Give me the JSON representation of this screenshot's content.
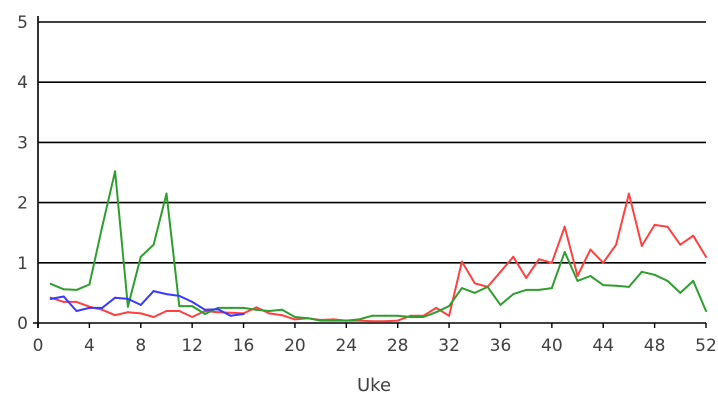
{
  "chart_data": {
    "type": "line",
    "title": "",
    "xlabel": "Uke",
    "ylabel": "",
    "xlim": [
      0,
      52
    ],
    "ylim": [
      0,
      5
    ],
    "x_ticks": [
      0,
      4,
      8,
      12,
      16,
      20,
      24,
      28,
      32,
      36,
      40,
      44,
      48,
      52
    ],
    "y_ticks": [
      0,
      1,
      2,
      3,
      4,
      5
    ],
    "grid": "horizontal",
    "legend": "none",
    "series": [
      {
        "color": "#ff4040",
        "x": [
          1,
          2,
          3,
          4,
          5,
          6,
          7,
          8,
          9,
          10,
          11,
          12,
          13,
          14,
          15,
          16,
          17,
          18,
          19,
          20,
          21,
          22,
          23,
          24,
          25,
          26,
          27,
          28,
          29,
          30,
          31,
          32,
          33,
          34,
          35,
          36,
          37,
          38,
          39,
          40,
          41,
          42,
          43,
          44,
          45,
          46,
          47,
          48,
          49,
          50,
          51,
          52
        ],
        "y": [
          0.42,
          0.35,
          0.35,
          0.27,
          0.22,
          0.13,
          0.18,
          0.16,
          0.1,
          0.2,
          0.2,
          0.1,
          0.2,
          0.18,
          0.17,
          0.16,
          0.26,
          0.16,
          0.13,
          0.06,
          0.08,
          0.05,
          0.06,
          0.04,
          0.04,
          0.03,
          0.03,
          0.04,
          0.12,
          0.12,
          0.25,
          0.12,
          1.02,
          0.66,
          0.6,
          0.85,
          1.1,
          0.75,
          1.06,
          1.0,
          1.6,
          0.78,
          1.22,
          1.0,
          1.3,
          2.15,
          1.28,
          1.63,
          1.6,
          1.3,
          1.45,
          1.1
        ]
      },
      {
        "color": "#2e9e2e",
        "x": [
          1,
          2,
          3,
          4,
          5,
          6,
          7,
          8,
          9,
          10,
          11,
          12,
          13,
          14,
          15,
          16,
          17,
          18,
          19,
          20,
          21,
          22,
          23,
          24,
          25,
          26,
          27,
          28,
          29,
          30,
          31,
          32,
          33,
          34,
          35,
          36,
          37,
          38,
          39,
          40,
          41,
          42,
          43,
          44,
          45,
          46,
          47,
          48,
          49,
          50,
          51,
          52
        ],
        "y": [
          0.65,
          0.56,
          0.55,
          0.64,
          1.6,
          2.52,
          0.27,
          1.1,
          1.3,
          2.15,
          0.28,
          0.28,
          0.15,
          0.25,
          0.25,
          0.25,
          0.22,
          0.2,
          0.22,
          0.1,
          0.08,
          0.04,
          0.04,
          0.04,
          0.06,
          0.12,
          0.12,
          0.12,
          0.1,
          0.1,
          0.18,
          0.28,
          0.58,
          0.5,
          0.6,
          0.3,
          0.48,
          0.55,
          0.55,
          0.58,
          1.18,
          0.7,
          0.78,
          0.63,
          0.62,
          0.6,
          0.85,
          0.8,
          0.7,
          0.5,
          0.7,
          0.2
        ]
      },
      {
        "color": "#3838ff",
        "x": [
          1,
          2,
          3,
          4,
          5,
          6,
          7,
          8,
          9,
          10,
          11,
          12,
          13,
          14,
          15,
          16
        ],
        "y": [
          0.4,
          0.44,
          0.2,
          0.25,
          0.25,
          0.42,
          0.4,
          0.3,
          0.53,
          0.48,
          0.45,
          0.35,
          0.22,
          0.23,
          0.12,
          0.15
        ]
      }
    ]
  }
}
